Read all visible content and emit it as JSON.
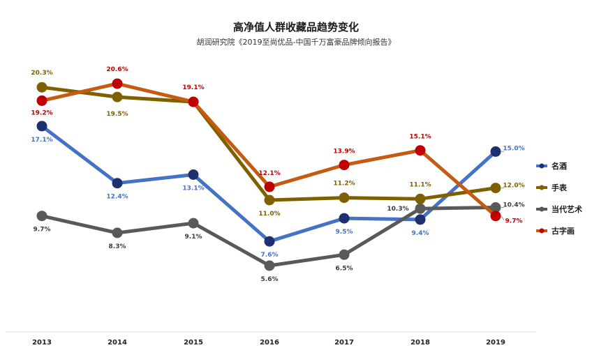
{
  "chart_data": {
    "type": "line",
    "title": "高净值人群收藏品趋势变化",
    "subtitle": "胡润研究院《2019至尚优品-中国千万富豪品牌倾向报告》",
    "xlabel": "",
    "ylabel": "",
    "x": [
      "2013",
      "2014",
      "2015",
      "2016",
      "2017",
      "2018",
      "2019"
    ],
    "ylim": [
      0,
      22
    ],
    "grid": false,
    "legend_position": "right",
    "series": [
      {
        "name": "名酒",
        "color": "#4472c4",
        "marker_color": "#1f3070",
        "values": [
          17.1,
          12.4,
          13.1,
          7.6,
          9.5,
          9.4,
          15.0
        ],
        "labels": [
          "17.1%",
          "12.4%",
          "13.1%",
          "7.6%",
          "9.5%",
          "9.4%",
          "15.0%"
        ]
      },
      {
        "name": "手表",
        "color": "#7f6000",
        "marker_color": "#7f6000",
        "values": [
          20.3,
          19.5,
          19.1,
          11.0,
          11.2,
          11.1,
          12.0
        ],
        "labels": [
          "20.3%",
          "19.5%",
          "",
          "11.0%",
          "11.2%",
          "11.1%",
          "12.0%"
        ]
      },
      {
        "name": "当代艺术",
        "color": "#595959",
        "marker_color": "#595959",
        "values": [
          9.7,
          8.3,
          9.1,
          5.6,
          6.5,
          10.3,
          10.4
        ],
        "labels": [
          "9.7%",
          "8.3%",
          "9.1%",
          "5.6%",
          "6.5%",
          "10.3%",
          "10.4%"
        ]
      },
      {
        "name": "古字画",
        "color": "#c55a11",
        "marker_color": "#c00000",
        "values": [
          19.2,
          20.6,
          19.1,
          12.1,
          13.9,
          15.1,
          9.7
        ],
        "labels": [
          "19.2%",
          "20.6%",
          "19.1%",
          "12.1%",
          "13.9%",
          "15.1%",
          "9.7%"
        ]
      }
    ]
  }
}
